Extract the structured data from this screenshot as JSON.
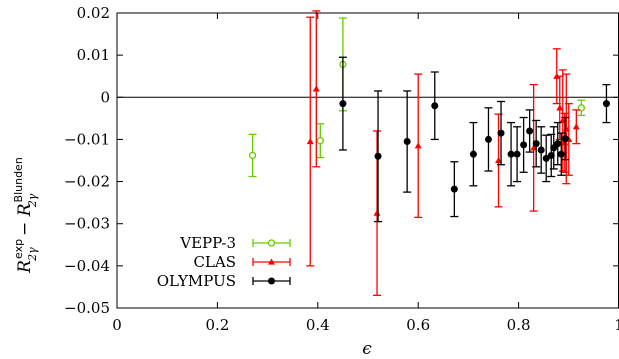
{
  "chart_data": {
    "type": "scatter",
    "xlabel": "ϵ",
    "ylabel_parts": {
      "main_a": "R",
      "sup_a": "exp",
      "sub_a": "2γ",
      "minus": " − ",
      "main_b": "R",
      "sup_b": "Blunden",
      "sub_b": "2γ"
    },
    "xlim": [
      0,
      1
    ],
    "ylim": [
      -0.05,
      0.02
    ],
    "xticks": [
      0,
      0.2,
      0.4,
      0.6,
      0.8,
      1
    ],
    "xtick_labels": [
      "0",
      "0.2",
      "0.4",
      "0.6",
      "0.8",
      "1"
    ],
    "yticks": [
      -0.05,
      -0.04,
      -0.03,
      -0.02,
      -0.01,
      0,
      0.01,
      0.02
    ],
    "ytick_labels": [
      "−0.05",
      "−0.04",
      "−0.03",
      "−0.02",
      "−0.01",
      "0",
      "0.01",
      "0.02"
    ],
    "reference_line_y": 0,
    "legend_position": "bottom-left",
    "series": [
      {
        "name": "VEPP-3",
        "color": "#66cc00",
        "marker": "open-circle",
        "points": [
          {
            "x": 0.27,
            "y": -0.0138,
            "err": 0.005
          },
          {
            "x": 0.405,
            "y": -0.0103,
            "err": 0.004
          },
          {
            "x": 0.45,
            "y": 0.0078,
            "err": 0.011
          },
          {
            "x": 0.925,
            "y": -0.0025,
            "err": 0.0018
          }
        ]
      },
      {
        "name": "CLAS",
        "color": "#ff0000",
        "marker": "filled-triangle",
        "points": [
          {
            "x": 0.385,
            "y": -0.0105,
            "err": 0.0295
          },
          {
            "x": 0.397,
            "y": 0.002,
            "err": 0.0185
          },
          {
            "x": 0.518,
            "y": -0.0275,
            "err": 0.0195
          },
          {
            "x": 0.6,
            "y": -0.0115,
            "err": 0.017
          },
          {
            "x": 0.76,
            "y": -0.015,
            "err": 0.011
          },
          {
            "x": 0.83,
            "y": -0.012,
            "err": 0.015
          },
          {
            "x": 0.876,
            "y": 0.005,
            "err": 0.0065
          },
          {
            "x": 0.882,
            "y": -0.0025,
            "err": 0.0075
          },
          {
            "x": 0.888,
            "y": -0.0055,
            "err": 0.012
          },
          {
            "x": 0.892,
            "y": -0.0108,
            "err": 0.007
          },
          {
            "x": 0.895,
            "y": -0.0075,
            "err": 0.013
          },
          {
            "x": 0.9,
            "y": -0.01,
            "err": 0.0085
          },
          {
            "x": 0.915,
            "y": -0.007,
            "err": 0.004
          }
        ]
      },
      {
        "name": "OLYMPUS",
        "color": "#000000",
        "marker": "filled-circle",
        "points": [
          {
            "x": 0.45,
            "y": -0.0015,
            "err": 0.011
          },
          {
            "x": 0.52,
            "y": -0.014,
            "err": 0.0155
          },
          {
            "x": 0.578,
            "y": -0.0105,
            "err": 0.012
          },
          {
            "x": 0.633,
            "y": -0.002,
            "err": 0.008
          },
          {
            "x": 0.672,
            "y": -0.0218,
            "err": 0.0065
          },
          {
            "x": 0.71,
            "y": -0.0135,
            "err": 0.0075
          },
          {
            "x": 0.74,
            "y": -0.01,
            "err": 0.0075
          },
          {
            "x": 0.765,
            "y": -0.0085,
            "err": 0.0075
          },
          {
            "x": 0.785,
            "y": -0.0135,
            "err": 0.0075
          },
          {
            "x": 0.797,
            "y": -0.0135,
            "err": 0.0065
          },
          {
            "x": 0.81,
            "y": -0.0113,
            "err": 0.0065
          },
          {
            "x": 0.822,
            "y": -0.008,
            "err": 0.005
          },
          {
            "x": 0.835,
            "y": -0.011,
            "err": 0.0055
          },
          {
            "x": 0.845,
            "y": -0.0125,
            "err": 0.0055
          },
          {
            "x": 0.855,
            "y": -0.0145,
            "err": 0.0055
          },
          {
            "x": 0.865,
            "y": -0.0138,
            "err": 0.005
          },
          {
            "x": 0.87,
            "y": -0.012,
            "err": 0.005
          },
          {
            "x": 0.878,
            "y": -0.011,
            "err": 0.005
          },
          {
            "x": 0.885,
            "y": -0.0135,
            "err": 0.005
          },
          {
            "x": 0.893,
            "y": -0.0098,
            "err": 0.005
          },
          {
            "x": 0.975,
            "y": -0.0015,
            "err": 0.0045
          }
        ]
      }
    ]
  }
}
